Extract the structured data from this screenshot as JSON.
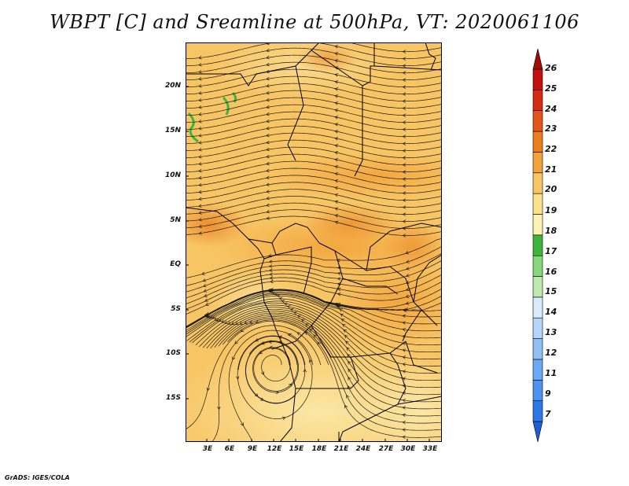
{
  "title": "WBPT [C] and Sreamline at 500hPa, VT: 2020061106",
  "credit": "GrADS: IGES/COLA",
  "map": {
    "lat_labels": [
      "20N",
      "15N",
      "10N",
      "5N",
      "EQ",
      "5S",
      "10S",
      "15S"
    ],
    "lon_labels": [
      "3E",
      "6E",
      "9E",
      "12E",
      "15E",
      "18E",
      "21E",
      "24E",
      "27E",
      "30E",
      "33E"
    ],
    "lat_range": [
      -20,
      24.5
    ],
    "lon_range": [
      0,
      34.5
    ]
  },
  "colorbar": {
    "labels": [
      "7",
      "9",
      "11",
      "12",
      "13",
      "14",
      "15",
      "16",
      "17",
      "18",
      "19",
      "20",
      "21",
      "22",
      "23",
      "24",
      "25",
      "26"
    ],
    "colors": [
      "#1f5fd6",
      "#2e78e6",
      "#4b93f0",
      "#6aa9f3",
      "#8fc0f6",
      "#b4d6f8",
      "#d8ecfb",
      "#bde8b0",
      "#86d67a",
      "#3fb43a",
      "#fff3b3",
      "#fbe18d",
      "#f8c564",
      "#f3a33a",
      "#ec7d1c",
      "#e3551a",
      "#d42d14",
      "#c21210",
      "#a00b08"
    ]
  }
}
